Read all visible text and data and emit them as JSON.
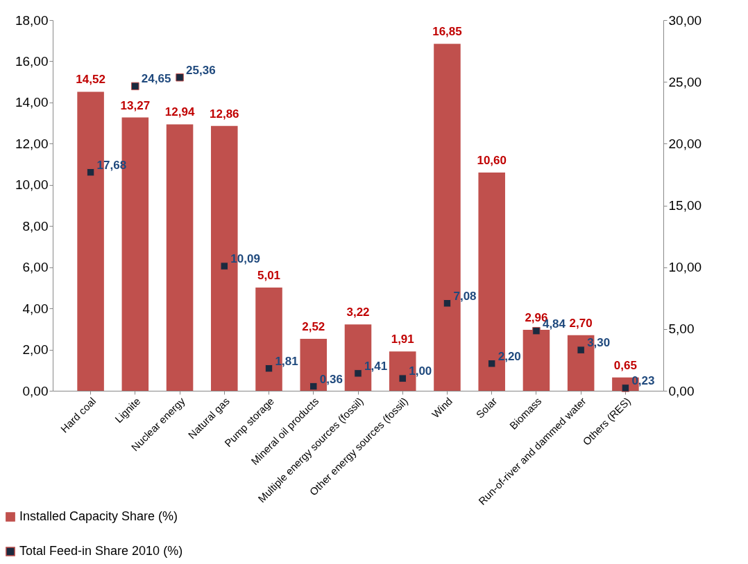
{
  "chart_data": {
    "type": "bar",
    "categories": [
      "Hard coal",
      "Lignite",
      "Nuclear energy",
      "Natural gas",
      "Pump storage",
      "Mineral oil products",
      "Multiple energy sources (fossil)",
      "Other energy sources (fossil)",
      "Wind",
      "Solar",
      "Biomass",
      "Run-of-river and dammed water",
      "Others (RES)"
    ],
    "series": [
      {
        "name": "Installed Capacity Share (%)",
        "type": "bar",
        "color": "#c0504d",
        "values": [
          14.52,
          13.27,
          12.94,
          12.86,
          5.01,
          2.52,
          3.22,
          1.91,
          16.85,
          10.6,
          2.96,
          2.7,
          0.65
        ],
        "value_labels": [
          "14,52",
          "13,27",
          "12,94",
          "12,86",
          "5,01",
          "2,52",
          "3,22",
          "1,91",
          "16,85",
          "10,60",
          "2,96",
          "2,70",
          "0,65"
        ]
      },
      {
        "name": "Total Feed-in Share 2010 (%)",
        "type": "scatter",
        "axis": "y2",
        "marker": "square",
        "color": "#1b2a3f",
        "values": [
          17.68,
          24.65,
          25.36,
          10.09,
          1.81,
          0.36,
          1.41,
          1.0,
          7.08,
          2.2,
          4.84,
          3.3,
          0.23
        ],
        "value_labels": [
          "17,68",
          "24,65",
          "25,36",
          "10,09",
          "1,81",
          "0,36",
          "1,41",
          "1,00",
          "7,08",
          "2,20",
          "4,84",
          "3,30",
          "0,23"
        ]
      }
    ],
    "ylim": [
      0,
      18
    ],
    "yticks": [
      {
        "value": 0,
        "label": "0,00"
      },
      {
        "value": 2,
        "label": "2,00"
      },
      {
        "value": 4,
        "label": "4,00"
      },
      {
        "value": 6,
        "label": "6,00"
      },
      {
        "value": 8,
        "label": "8,00"
      },
      {
        "value": 10,
        "label": "10,00"
      },
      {
        "value": 12,
        "label": "12,00"
      },
      {
        "value": 14,
        "label": "14,00"
      },
      {
        "value": 16,
        "label": "16,00"
      },
      {
        "value": 18,
        "label": "18,00"
      }
    ],
    "y2lim": [
      0,
      30
    ],
    "y2ticks": [
      {
        "value": 0,
        "label": "0,00"
      },
      {
        "value": 5,
        "label": "5,00"
      },
      {
        "value": 10,
        "label": "10,00"
      },
      {
        "value": 15,
        "label": "15,00"
      },
      {
        "value": 20,
        "label": "20,00"
      },
      {
        "value": 25,
        "label": "25,00"
      },
      {
        "value": 30,
        "label": "30,00"
      }
    ],
    "grid": false,
    "legend": "bottom left"
  }
}
